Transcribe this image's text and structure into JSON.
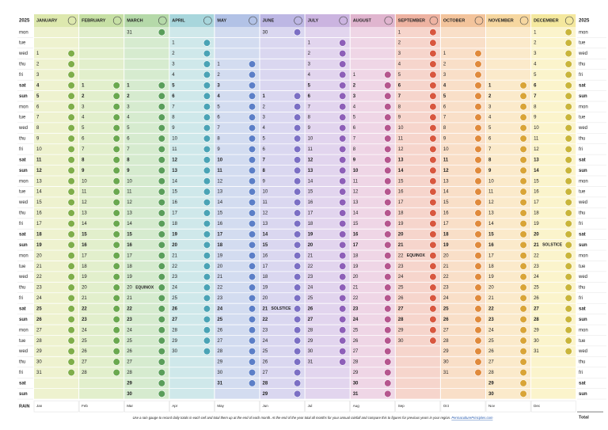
{
  "year": "2025",
  "weekdays": [
    "mon",
    "tue",
    "wed",
    "thu",
    "fri",
    "sat",
    "sun",
    "mon",
    "tue",
    "wed",
    "thu",
    "fri",
    "sat",
    "sun",
    "mon",
    "tue",
    "wed",
    "thu",
    "fri",
    "sat",
    "sun",
    "mon",
    "tue",
    "wed",
    "thu",
    "fri",
    "sat",
    "sun",
    "mon",
    "tue",
    "wed",
    "thu",
    "fri",
    "sat",
    "sun"
  ],
  "months": [
    {
      "name": "JANUARY",
      "color": "#eef2cf",
      "header": "#dde8ae",
      "icon": "#7fae4a",
      "days": [
        1,
        2,
        3,
        4,
        5,
        6,
        7,
        8,
        9,
        10,
        11,
        12,
        13,
        14,
        15,
        16,
        17,
        18,
        19,
        20,
        21,
        22,
        23,
        24,
        25,
        26,
        27,
        28,
        29,
        30,
        31
      ]
    },
    {
      "name": "FEBRUARY",
      "color": "#e2efcc",
      "header": "#c7e0a5",
      "icon": "#6aa84f",
      "days": [
        1,
        2,
        3,
        4,
        5,
        6,
        7,
        8,
        9,
        10,
        11,
        12,
        13,
        14,
        15,
        16,
        17,
        18,
        19,
        20,
        21,
        22,
        23,
        24,
        25,
        26,
        27,
        28
      ]
    },
    {
      "name": "MARCH",
      "color": "#d6ebcf",
      "header": "#b5d9a9",
      "icon": "#5a9e5a",
      "days": [
        1,
        2,
        3,
        4,
        5,
        6,
        7,
        8,
        9,
        10,
        11,
        12,
        13,
        14,
        15,
        16,
        17,
        18,
        19,
        20,
        21,
        22,
        23,
        24,
        25,
        26,
        27,
        28,
        29,
        30,
        31
      ],
      "event": {
        "day": 20,
        "label": "EQUINOX"
      }
    },
    {
      "name": "APRIL",
      "color": "#cfe8ea",
      "header": "#a8d6dc",
      "icon": "#4aa3b5",
      "days": [
        1,
        2,
        3,
        4,
        5,
        6,
        7,
        8,
        9,
        10,
        11,
        12,
        13,
        14,
        15,
        16,
        17,
        18,
        19,
        20,
        21,
        22,
        23,
        24,
        25,
        26,
        27,
        28,
        29,
        30
      ]
    },
    {
      "name": "MAY",
      "color": "#d3dcf0",
      "header": "#b2c2e6",
      "icon": "#5b7fc7",
      "days": [
        1,
        2,
        3,
        4,
        5,
        6,
        7,
        8,
        9,
        10,
        11,
        12,
        13,
        14,
        15,
        16,
        17,
        18,
        19,
        20,
        21,
        22,
        23,
        24,
        25,
        26,
        27,
        28,
        29,
        30,
        31
      ]
    },
    {
      "name": "JUNE",
      "color": "#dad7f0",
      "header": "#bdb7e4",
      "icon": "#7b6fc4",
      "days": [
        1,
        2,
        3,
        4,
        5,
        6,
        7,
        8,
        9,
        10,
        11,
        12,
        13,
        14,
        15,
        16,
        17,
        18,
        19,
        20,
        21,
        22,
        23,
        24,
        25,
        26,
        27,
        28,
        29,
        30
      ],
      "event": {
        "day": 21,
        "label": "SOLSTICE"
      }
    },
    {
      "name": "JULY",
      "color": "#e2d5ee",
      "header": "#cbb4e0",
      "icon": "#8d5fb8",
      "days": [
        1,
        2,
        3,
        4,
        5,
        6,
        7,
        8,
        9,
        10,
        11,
        12,
        13,
        14,
        15,
        16,
        17,
        18,
        19,
        20,
        21,
        22,
        23,
        24,
        25,
        26,
        27,
        28,
        29,
        30,
        31
      ]
    },
    {
      "name": "AUGUST",
      "color": "#efd6e6",
      "header": "#e0b5cf",
      "icon": "#b5568e",
      "days": [
        1,
        2,
        3,
        4,
        5,
        6,
        7,
        8,
        9,
        10,
        11,
        12,
        13,
        14,
        15,
        16,
        17,
        18,
        19,
        20,
        21,
        22,
        23,
        24,
        25,
        26,
        27,
        28,
        29,
        30,
        31
      ]
    },
    {
      "name": "SEPTEMBER",
      "color": "#f6d5cc",
      "header": "#eeb3a2",
      "icon": "#d8573f",
      "days": [
        1,
        2,
        3,
        4,
        5,
        6,
        7,
        8,
        9,
        10,
        11,
        12,
        13,
        14,
        15,
        16,
        17,
        18,
        19,
        20,
        21,
        22,
        23,
        24,
        25,
        26,
        27,
        28,
        29,
        30
      ],
      "event": {
        "day": 22,
        "label": "EQUINOX"
      }
    },
    {
      "name": "OCTOBER",
      "color": "#f9dfc8",
      "header": "#f3c49c",
      "icon": "#e08a3c",
      "days": [
        1,
        2,
        3,
        4,
        5,
        6,
        7,
        8,
        9,
        10,
        11,
        12,
        13,
        14,
        15,
        16,
        17,
        18,
        19,
        20,
        21,
        22,
        23,
        24,
        25,
        26,
        27,
        28,
        29,
        30,
        31
      ]
    },
    {
      "name": "NOVEMBER",
      "color": "#fbeacb",
      "header": "#f6d7a0",
      "icon": "#d9a437",
      "days": [
        1,
        2,
        3,
        4,
        5,
        6,
        7,
        8,
        9,
        10,
        11,
        12,
        13,
        14,
        15,
        16,
        17,
        18,
        19,
        20,
        21,
        22,
        23,
        24,
        25,
        26,
        27,
        28,
        29,
        30
      ]
    },
    {
      "name": "DECEMBER",
      "color": "#fbf4cc",
      "header": "#f4e89e",
      "icon": "#c9b53a",
      "days": [
        1,
        2,
        3,
        4,
        5,
        6,
        7,
        8,
        9,
        10,
        11,
        12,
        13,
        14,
        15,
        16,
        17,
        18,
        19,
        20,
        21,
        22,
        23,
        24,
        25,
        26,
        27,
        28,
        29,
        30,
        31
      ],
      "event": {
        "day": 21,
        "label": "SOLSTICE"
      }
    }
  ],
  "rain": {
    "label": "RAIN",
    "months": [
      "Jan",
      "Feb",
      "Mar",
      "Apr",
      "May",
      "Jun",
      "Jul",
      "Aug",
      "Sep",
      "Oct",
      "Nov",
      "Dec"
    ],
    "total": "Total"
  },
  "footer": {
    "note": "Use a rain gauge to record daily totals in each cell and total them up at the end of each month. At the end of the year total all months for your annual rainfall and compare this to figures for previous years in your region.",
    "link": "PermaculturePrinciples.com"
  }
}
